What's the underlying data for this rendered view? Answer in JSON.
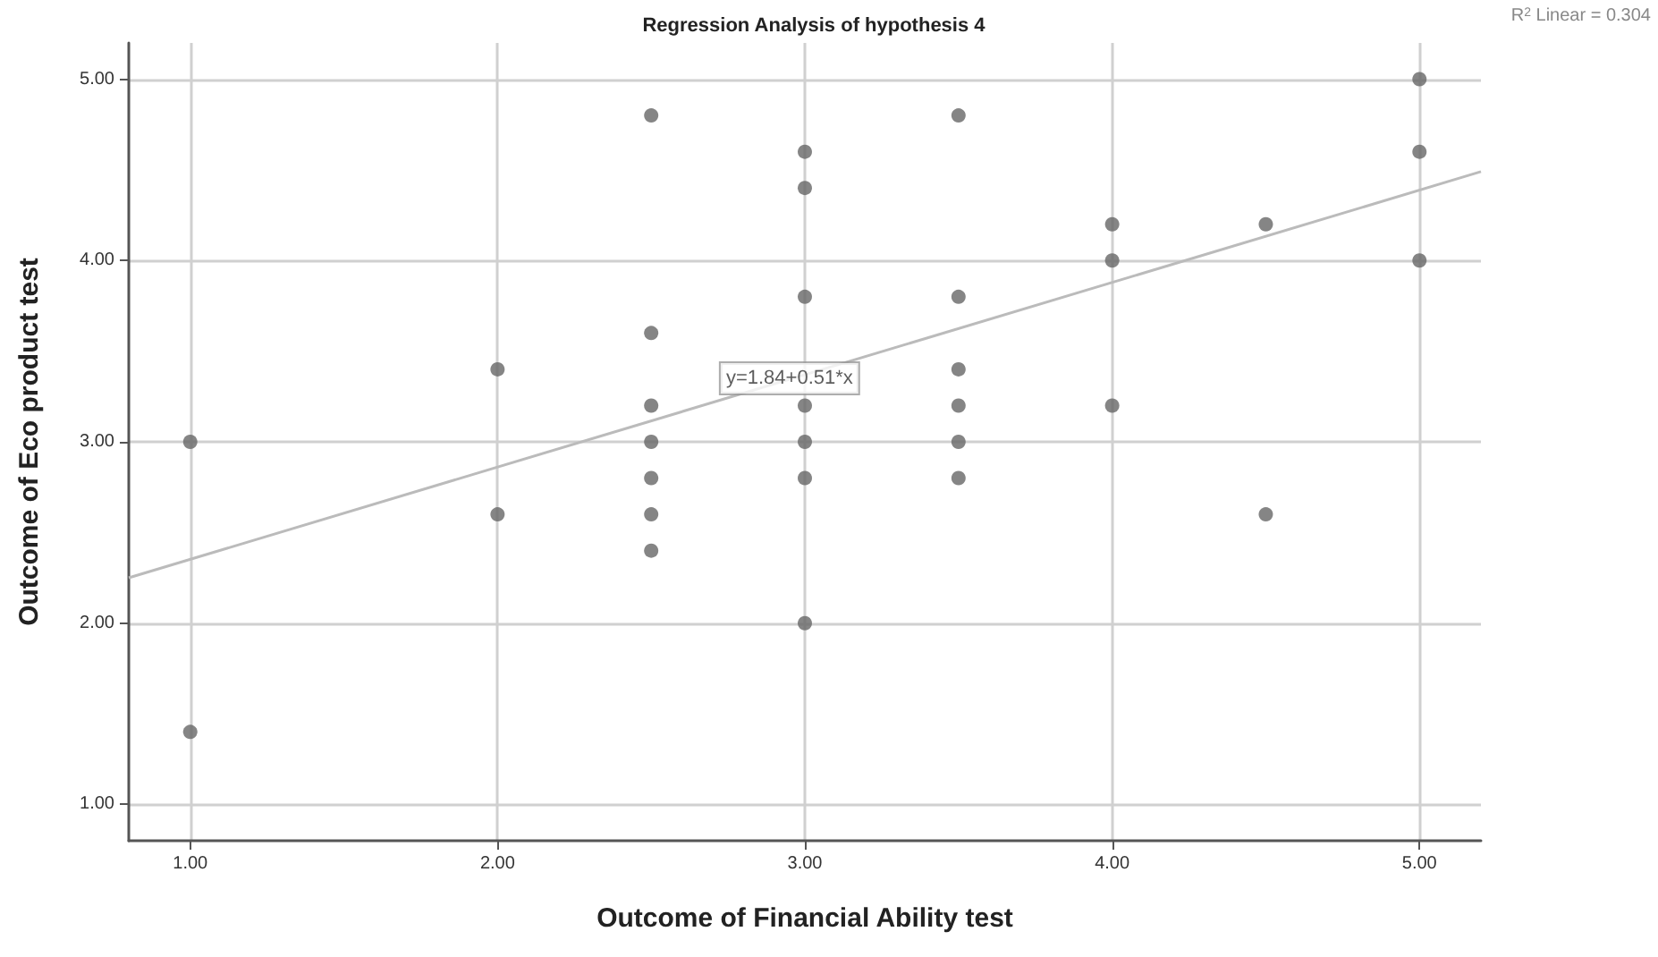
{
  "chart_data": {
    "type": "scatter",
    "title": "Regression Analysis of hypothesis 4",
    "xlabel": "Outcome of Financial Ability test",
    "ylabel": "Outcome of Eco product test",
    "series": [
      {
        "type": "scatter",
        "color": "#666666",
        "x": [
          1,
          1,
          2,
          2,
          2.5,
          2.5,
          2.5,
          2.5,
          2.5,
          2.5,
          2.5,
          3,
          3,
          3,
          3,
          3,
          3,
          3,
          3.5,
          3.5,
          3.5,
          3.5,
          3.5,
          3.5,
          4,
          4,
          4,
          4.5,
          4.5,
          5,
          5,
          5
        ],
        "values": [
          3.0,
          1.4,
          3.4,
          2.6,
          4.8,
          3.6,
          3.2,
          3.0,
          2.8,
          2.6,
          2.4,
          4.6,
          4.4,
          3.8,
          3.2,
          3.0,
          2.8,
          2.0,
          4.8,
          3.8,
          3.4,
          3.2,
          3.0,
          2.8,
          4.2,
          4.0,
          3.2,
          4.2,
          2.6,
          5.0,
          4.6,
          4.0
        ]
      },
      {
        "type": "line",
        "color": "#bbbbbb",
        "x": [
          0.8,
          5.2
        ],
        "values": [
          2.25,
          4.49
        ],
        "marker": "none"
      }
    ],
    "annotations": [
      {
        "text": "y=1.84+0.51*x",
        "x": 2.95,
        "y": 3.35
      },
      "R$^{2}$ Linear = 0.304"
    ],
    "marker": "circle",
    "grid": true,
    "xlim": [
      0.8,
      5.2
    ],
    "ylim": [
      0.8,
      5.2
    ],
    "xticks": [
      {
        "value": 1,
        "label": "1.00"
      },
      {
        "value": 2,
        "label": "2.00"
      },
      {
        "value": 3,
        "label": "3.00"
      },
      {
        "value": 4,
        "label": "4.00"
      },
      {
        "value": 5,
        "label": "5.00"
      }
    ],
    "yticks": [
      {
        "value": 1,
        "label": "1.00"
      },
      {
        "value": 2,
        "label": "2.00"
      },
      {
        "value": 3,
        "label": "3.00"
      },
      {
        "value": 4,
        "label": "4.00"
      },
      {
        "value": 5,
        "label": "5.00"
      }
    ]
  }
}
